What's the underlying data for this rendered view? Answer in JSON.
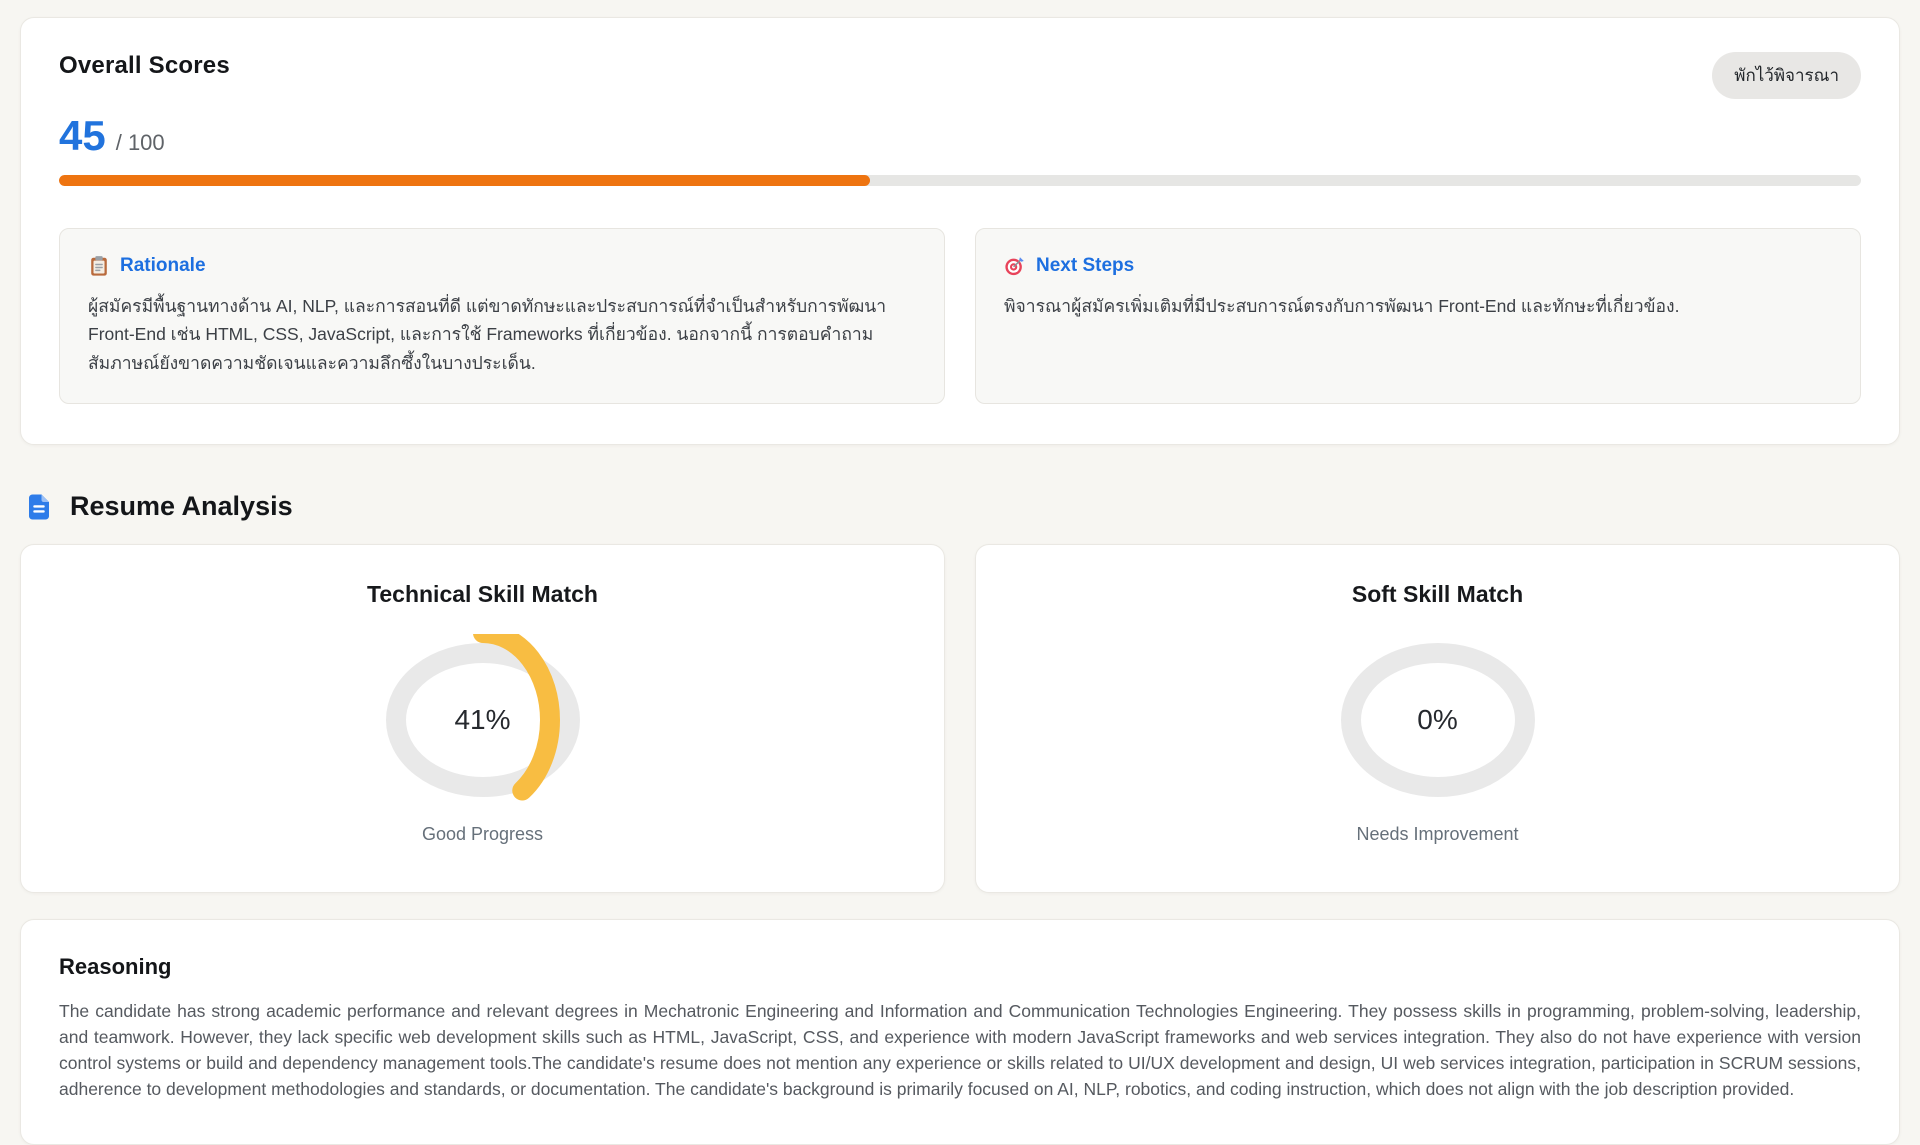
{
  "colors": {
    "accent_blue": "#2173dd",
    "progress_orange": "#ee7410",
    "donut_amber": "#f8bd42",
    "donut_track": "#e9e9e9",
    "badge_bg": "#e8e7e5"
  },
  "overall": {
    "title": "Overall Scores",
    "score": "45",
    "score_max": "/ 100",
    "progress_percent": 45,
    "status_badge": "พักไว้พิจารณา",
    "rationale": {
      "icon": "clipboard-icon",
      "title": "Rationale",
      "text": "ผู้สมัครมีพื้นฐานทางด้าน AI, NLP, และการสอนที่ดี แต่ขาดทักษะและประสบการณ์ที่จำเป็นสำหรับการพัฒนา Front-End เช่น HTML, CSS, JavaScript, และการใช้ Frameworks ที่เกี่ยวข้อง. นอกจากนี้ การตอบคำถามสัมภาษณ์ยังขาดความชัดเจนและความลึกซึ้งในบางประเด็น."
    },
    "next_steps": {
      "icon": "target-icon",
      "title": "Next Steps",
      "text": "พิจารณาผู้สมัครเพิ่มเติมที่มีประสบการณ์ตรงกับการพัฒนา Front-End และทักษะที่เกี่ยวข้อง."
    }
  },
  "resume_analysis": {
    "icon": "document-icon",
    "title": "Resume Analysis",
    "gauges": [
      {
        "title": "Technical Skill Match",
        "percent": 41,
        "percent_label": "41%",
        "status": "Good Progress",
        "arc_color": "#f8bd42"
      },
      {
        "title": "Soft Skill Match",
        "percent": 0,
        "percent_label": "0%",
        "status": "Needs Improvement",
        "arc_color": "#f8bd42"
      }
    ]
  },
  "reasoning": {
    "title": "Reasoning",
    "text": "The candidate has strong academic performance and relevant degrees in Mechatronic Engineering and Information and Communication Technologies Engineering. They possess skills in programming, problem-solving, leadership, and teamwork. However, they lack specific web development skills such as HTML, JavaScript, CSS, and experience with modern JavaScript frameworks and web services integration. They also do not have experience with version control systems or build and dependency management tools.The candidate's resume does not mention any experience or skills related to UI/UX development and design, UI web services integration, participation in SCRUM sessions, adherence to development methodologies and standards, or documentation. The candidate's background is primarily focused on AI, NLP, robotics, and coding instruction, which does not align with the job description provided."
  },
  "chart_data": [
    {
      "type": "bar",
      "title": "Overall Score progress bar",
      "categories": [
        "Overall Score"
      ],
      "values": [
        45
      ],
      "ylim": [
        0,
        100
      ]
    },
    {
      "type": "pie",
      "title": "Technical Skill Match gauge",
      "categories": [
        "Match",
        "Remaining"
      ],
      "values": [
        41,
        59
      ],
      "annotations": [
        "41%",
        "Good Progress"
      ]
    },
    {
      "type": "pie",
      "title": "Soft Skill Match gauge",
      "categories": [
        "Match",
        "Remaining"
      ],
      "values": [
        0,
        100
      ],
      "annotations": [
        "0%",
        "Needs Improvement"
      ]
    }
  ]
}
